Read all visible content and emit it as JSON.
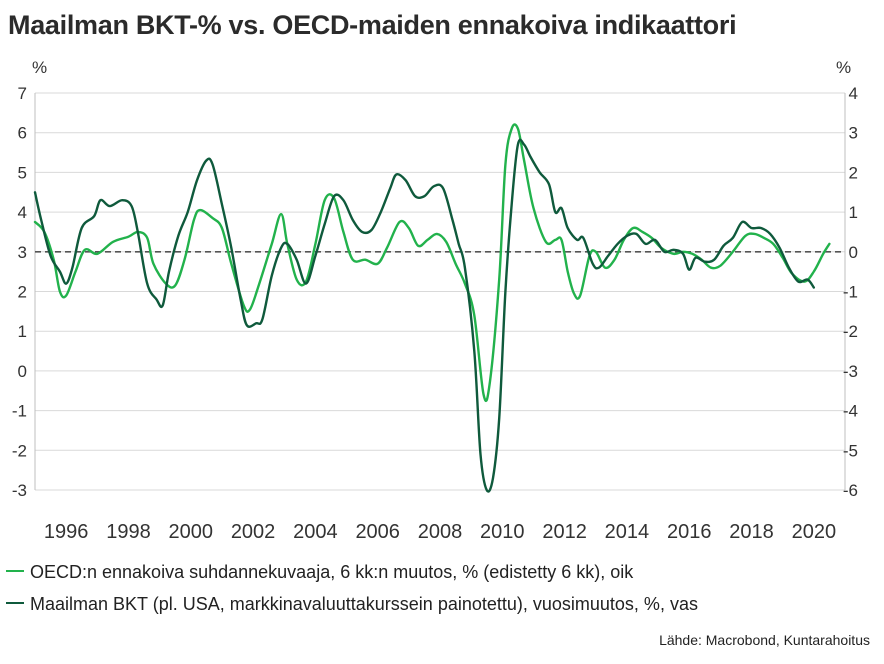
{
  "title": "Maailman BKT-% vs. OECD-maiden ennakoiva indikaattori",
  "source": "Lähde: Macrobond, Kuntarahoitus",
  "colors": {
    "oecd": "#22b24c",
    "gdp": "#0f5a3c",
    "zero_line": "#555555",
    "grid": "#d9d9d9"
  },
  "chart_data": {
    "type": "line",
    "left_axis": {
      "unit": "%",
      "ylim": [
        -3,
        7
      ],
      "ticks": [
        -3,
        -2,
        -1,
        0,
        1,
        2,
        3,
        4,
        5,
        6,
        7
      ]
    },
    "right_axis": {
      "unit": "%",
      "ylim": [
        -6,
        4
      ],
      "ticks": [
        -6,
        -5,
        -4,
        -3,
        -2,
        -1,
        0,
        1,
        2,
        3,
        4
      ]
    },
    "xlim": [
      1995,
      2021
    ],
    "x_ticks": [
      1996,
      1998,
      2000,
      2002,
      2004,
      2006,
      2008,
      2010,
      2012,
      2014,
      2016,
      2018,
      2020
    ],
    "reference_line": {
      "axis": "right",
      "value": 0,
      "style": "dashed"
    },
    "grid": "horizontal",
    "legend_position": "bottom",
    "series": [
      {
        "name": "OECD:n ennakoiva suhdannekuvaaja, 6 kk:n muutos, % (edistetty 6 kk), oik",
        "axis": "right",
        "color_key": "oecd",
        "points": [
          [
            1995.0,
            0.75
          ],
          [
            1995.3,
            0.5
          ],
          [
            1995.6,
            -0.2
          ],
          [
            1995.8,
            -1.0
          ],
          [
            1996.0,
            -1.1
          ],
          [
            1996.3,
            -0.5
          ],
          [
            1996.6,
            0.05
          ],
          [
            1997.0,
            -0.05
          ],
          [
            1997.5,
            0.25
          ],
          [
            1998.0,
            0.38
          ],
          [
            1998.3,
            0.5
          ],
          [
            1998.6,
            0.35
          ],
          [
            1998.8,
            -0.3
          ],
          [
            1999.2,
            -0.8
          ],
          [
            1999.5,
            -0.85
          ],
          [
            1999.8,
            -0.2
          ],
          [
            2000.1,
            0.8
          ],
          [
            2000.3,
            1.05
          ],
          [
            2000.7,
            0.85
          ],
          [
            2001.0,
            0.6
          ],
          [
            2001.3,
            -0.3
          ],
          [
            2001.7,
            -1.35
          ],
          [
            2001.9,
            -1.45
          ],
          [
            2002.2,
            -0.8
          ],
          [
            2002.6,
            0.2
          ],
          [
            2002.9,
            0.95
          ],
          [
            2003.1,
            0.2
          ],
          [
            2003.4,
            -0.7
          ],
          [
            2003.7,
            -0.75
          ],
          [
            2004.0,
            0.2
          ],
          [
            2004.3,
            1.3
          ],
          [
            2004.6,
            1.35
          ],
          [
            2004.9,
            0.5
          ],
          [
            2005.2,
            -0.2
          ],
          [
            2005.6,
            -0.2
          ],
          [
            2006.0,
            -0.3
          ],
          [
            2006.3,
            0.1
          ],
          [
            2006.7,
            0.75
          ],
          [
            2007.0,
            0.6
          ],
          [
            2007.3,
            0.15
          ],
          [
            2007.6,
            0.3
          ],
          [
            2007.9,
            0.45
          ],
          [
            2008.2,
            0.25
          ],
          [
            2008.5,
            -0.3
          ],
          [
            2008.8,
            -0.8
          ],
          [
            2009.1,
            -1.6
          ],
          [
            2009.4,
            -3.6
          ],
          [
            2009.6,
            -3.3
          ],
          [
            2009.9,
            -0.7
          ],
          [
            2010.1,
            2.2
          ],
          [
            2010.3,
            3.1
          ],
          [
            2010.5,
            3.1
          ],
          [
            2010.7,
            2.3
          ],
          [
            2011.0,
            1.1
          ],
          [
            2011.4,
            0.25
          ],
          [
            2011.7,
            0.3
          ],
          [
            2011.9,
            0.3
          ],
          [
            2012.1,
            -0.5
          ],
          [
            2012.3,
            -1.05
          ],
          [
            2012.5,
            -1.1
          ],
          [
            2012.8,
            -0.1
          ],
          [
            2013.0,
            0.0
          ],
          [
            2013.3,
            -0.4
          ],
          [
            2013.6,
            -0.2
          ],
          [
            2013.9,
            0.3
          ],
          [
            2014.2,
            0.6
          ],
          [
            2014.5,
            0.5
          ],
          [
            2014.8,
            0.35
          ],
          [
            2015.1,
            0.1
          ],
          [
            2015.5,
            -0.05
          ],
          [
            2015.8,
            0.0
          ],
          [
            2016.1,
            -0.05
          ],
          [
            2016.4,
            -0.2
          ],
          [
            2016.7,
            -0.4
          ],
          [
            2017.0,
            -0.35
          ],
          [
            2017.4,
            0.0
          ],
          [
            2017.8,
            0.4
          ],
          [
            2018.1,
            0.45
          ],
          [
            2018.4,
            0.35
          ],
          [
            2018.7,
            0.2
          ],
          [
            2019.0,
            -0.15
          ],
          [
            2019.3,
            -0.55
          ],
          [
            2019.7,
            -0.75
          ],
          [
            2020.0,
            -0.5
          ],
          [
            2020.3,
            -0.05
          ],
          [
            2020.5,
            0.2
          ]
        ]
      },
      {
        "name": "Maailman BKT (pl. USA, markkinavaluuttakurssein painotettu), vuosimuutos, %, vas",
        "axis": "left",
        "color_key": "gdp",
        "points": [
          [
            1995.0,
            4.5
          ],
          [
            1995.2,
            3.8
          ],
          [
            1995.5,
            2.9
          ],
          [
            1995.8,
            2.5
          ],
          [
            1996.0,
            2.2
          ],
          [
            1996.2,
            2.6
          ],
          [
            1996.5,
            3.6
          ],
          [
            1996.9,
            3.9
          ],
          [
            1997.1,
            4.3
          ],
          [
            1997.4,
            4.15
          ],
          [
            1997.8,
            4.3
          ],
          [
            1998.1,
            4.15
          ],
          [
            1998.3,
            3.5
          ],
          [
            1998.6,
            2.2
          ],
          [
            1998.9,
            1.8
          ],
          [
            1999.1,
            1.65
          ],
          [
            1999.3,
            2.5
          ],
          [
            1999.6,
            3.4
          ],
          [
            1999.9,
            4.0
          ],
          [
            2000.2,
            4.8
          ],
          [
            2000.5,
            5.3
          ],
          [
            2000.7,
            5.2
          ],
          [
            2001.0,
            4.2
          ],
          [
            2001.3,
            3.1
          ],
          [
            2001.6,
            1.8
          ],
          [
            2001.8,
            1.15
          ],
          [
            2002.1,
            1.2
          ],
          [
            2002.3,
            1.3
          ],
          [
            2002.6,
            2.4
          ],
          [
            2002.9,
            3.1
          ],
          [
            2003.1,
            3.2
          ],
          [
            2003.4,
            2.8
          ],
          [
            2003.7,
            2.2
          ],
          [
            2004.0,
            2.9
          ],
          [
            2004.3,
            3.7
          ],
          [
            2004.6,
            4.4
          ],
          [
            2004.9,
            4.3
          ],
          [
            2005.2,
            3.8
          ],
          [
            2005.5,
            3.5
          ],
          [
            2005.8,
            3.55
          ],
          [
            2006.1,
            4.0
          ],
          [
            2006.4,
            4.6
          ],
          [
            2006.6,
            4.95
          ],
          [
            2006.9,
            4.8
          ],
          [
            2007.2,
            4.4
          ],
          [
            2007.5,
            4.4
          ],
          [
            2007.8,
            4.65
          ],
          [
            2008.1,
            4.6
          ],
          [
            2008.4,
            3.8
          ],
          [
            2008.6,
            3.2
          ],
          [
            2008.8,
            2.6
          ],
          [
            2009.1,
            0.5
          ],
          [
            2009.3,
            -2.1
          ],
          [
            2009.5,
            -3.0
          ],
          [
            2009.7,
            -2.7
          ],
          [
            2009.9,
            -1.2
          ],
          [
            2010.1,
            2.0
          ],
          [
            2010.3,
            4.2
          ],
          [
            2010.5,
            5.7
          ],
          [
            2010.7,
            5.7
          ],
          [
            2010.9,
            5.4
          ],
          [
            2011.2,
            5.0
          ],
          [
            2011.5,
            4.7
          ],
          [
            2011.7,
            4.0
          ],
          [
            2011.9,
            4.1
          ],
          [
            2012.1,
            3.6
          ],
          [
            2012.4,
            3.3
          ],
          [
            2012.6,
            3.35
          ],
          [
            2012.9,
            2.7
          ],
          [
            2013.1,
            2.6
          ],
          [
            2013.4,
            2.9
          ],
          [
            2013.7,
            3.2
          ],
          [
            2014.0,
            3.4
          ],
          [
            2014.3,
            3.45
          ],
          [
            2014.6,
            3.2
          ],
          [
            2014.9,
            3.3
          ],
          [
            2015.2,
            3.0
          ],
          [
            2015.5,
            3.05
          ],
          [
            2015.8,
            2.95
          ],
          [
            2016.0,
            2.55
          ],
          [
            2016.2,
            2.85
          ],
          [
            2016.5,
            2.75
          ],
          [
            2016.8,
            2.8
          ],
          [
            2017.1,
            3.15
          ],
          [
            2017.4,
            3.35
          ],
          [
            2017.7,
            3.75
          ],
          [
            2018.0,
            3.6
          ],
          [
            2018.3,
            3.6
          ],
          [
            2018.6,
            3.45
          ],
          [
            2018.9,
            3.1
          ],
          [
            2019.2,
            2.6
          ],
          [
            2019.5,
            2.25
          ],
          [
            2019.8,
            2.3
          ],
          [
            2020.0,
            2.1
          ]
        ]
      }
    ]
  }
}
